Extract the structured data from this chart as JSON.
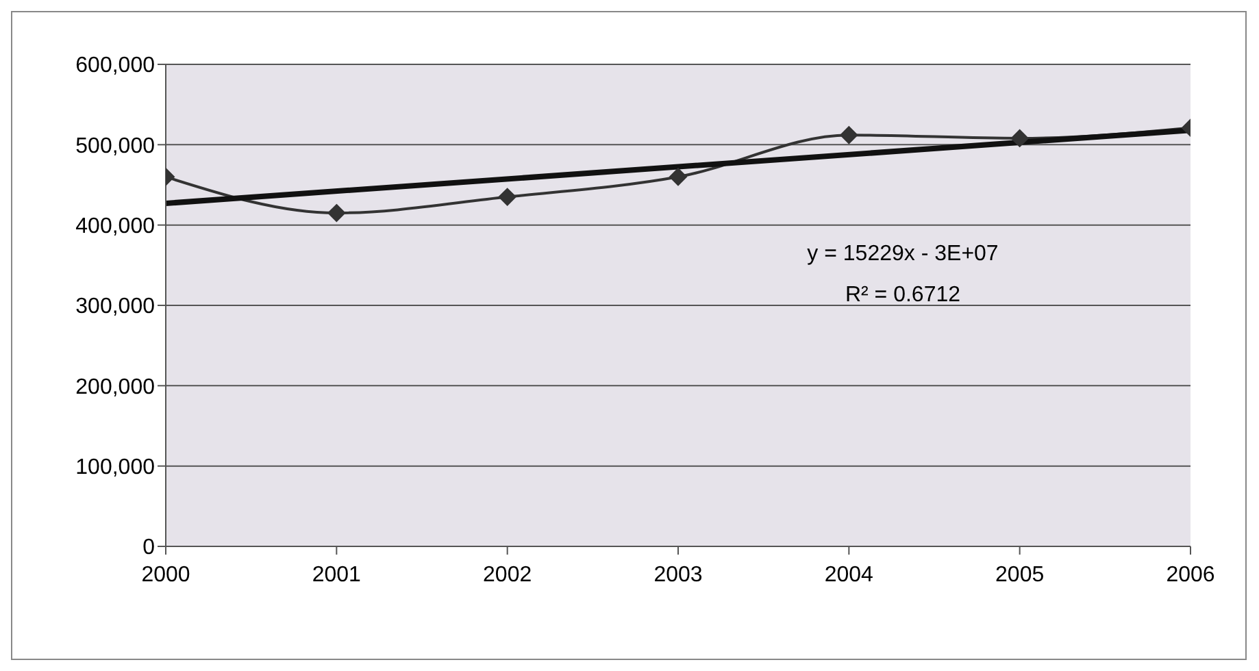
{
  "chart_data": {
    "type": "line",
    "x": [
      2000,
      2001,
      2002,
      2003,
      2004,
      2005,
      2006
    ],
    "series": [
      {
        "color": "#333333",
        "values": [
          460000,
          415000,
          435000,
          460000,
          512000,
          508000,
          521000
        ],
        "marker": "diamond"
      },
      {
        "type": "line",
        "color": "#111111",
        "x": [
          2000,
          2006
        ],
        "values": [
          427000,
          518000
        ],
        "marker": "none"
      }
    ],
    "xlim": [
      2000,
      2006
    ],
    "xticks": [
      2000,
      2001,
      2002,
      2003,
      2004,
      2005,
      2006
    ],
    "ylim": [
      0,
      600000
    ],
    "yticks": [
      0,
      {
        "value": 100000,
        "label": "100,000"
      },
      {
        "value": 200000,
        "label": "200,000"
      },
      {
        "value": 300000,
        "label": "300,000"
      },
      {
        "value": 400000,
        "label": "400,000"
      },
      {
        "value": 500000,
        "label": "500,000"
      },
      {
        "value": 600000,
        "label": "600,000"
      }
    ],
    "grid": "y",
    "annotations": [
      "y = 15229x - 3E+07",
      "R² = 0.6712"
    ]
  }
}
